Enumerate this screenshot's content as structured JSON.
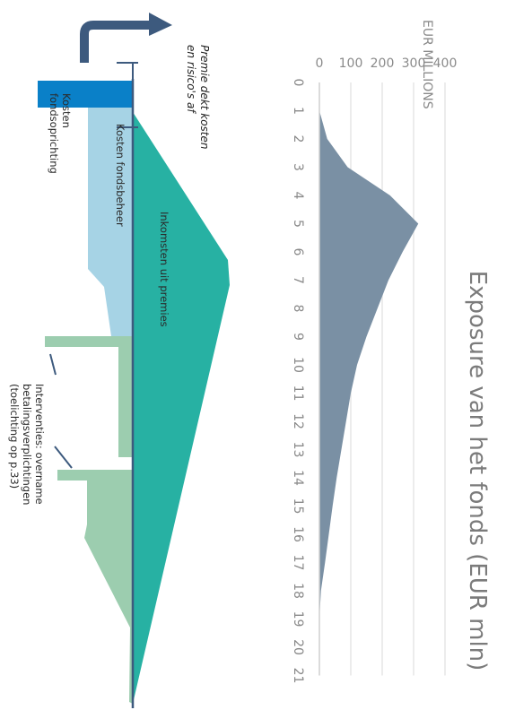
{
  "chart_data": {
    "type": "area",
    "title": "Exposure van het fonds (EUR mln)",
    "ylabel": "EUR MILLIONS",
    "x": [
      0,
      1,
      2,
      3,
      4,
      5,
      6,
      7,
      8,
      9,
      10,
      11,
      12,
      13,
      14,
      15,
      16,
      17,
      18,
      19,
      20,
      21
    ],
    "x_ticks": [
      "0",
      "1",
      "2",
      "3",
      "4",
      "5",
      "6",
      "7",
      "8",
      "9",
      "10",
      "11",
      "12",
      "13",
      "14",
      "15",
      "16",
      "17",
      "18",
      "19",
      "20",
      "21"
    ],
    "y_ticks": [
      "0",
      "100",
      "200",
      "300",
      "400"
    ],
    "ylim": [
      0,
      400
    ],
    "series": [
      {
        "values": [
          0,
          0,
          25,
          90,
          225,
          315,
          265,
          220,
          185,
          150,
          120,
          100,
          85,
          70,
          55,
          42,
          30,
          18,
          5,
          0,
          0,
          0
        ]
      }
    ],
    "colors": {
      "series": "#7a90a4",
      "grid": "#e6e6e6"
    }
  },
  "diagram": {
    "bracket_note": [
      "Premie dekt kosten",
      "en risico's af"
    ],
    "bands": {
      "setup_cost": [
        "Kosten",
        "fondsoprichting"
      ],
      "management_cost": "Kosten fondsbeheer",
      "premium_income": "Inkomsten uit premies",
      "interventions": [
        "Interventies: overname",
        "betalingsverplichtingen",
        "(toelichting op p.33)"
      ]
    },
    "colors": {
      "setup_cost": "#0a80c8",
      "management_cost": "#a6d3e5",
      "premium_income": "#27b1a3",
      "interventions": "#9ccdaf",
      "axis": "#3d5a7e",
      "arrow": "#3d5a7e"
    }
  }
}
